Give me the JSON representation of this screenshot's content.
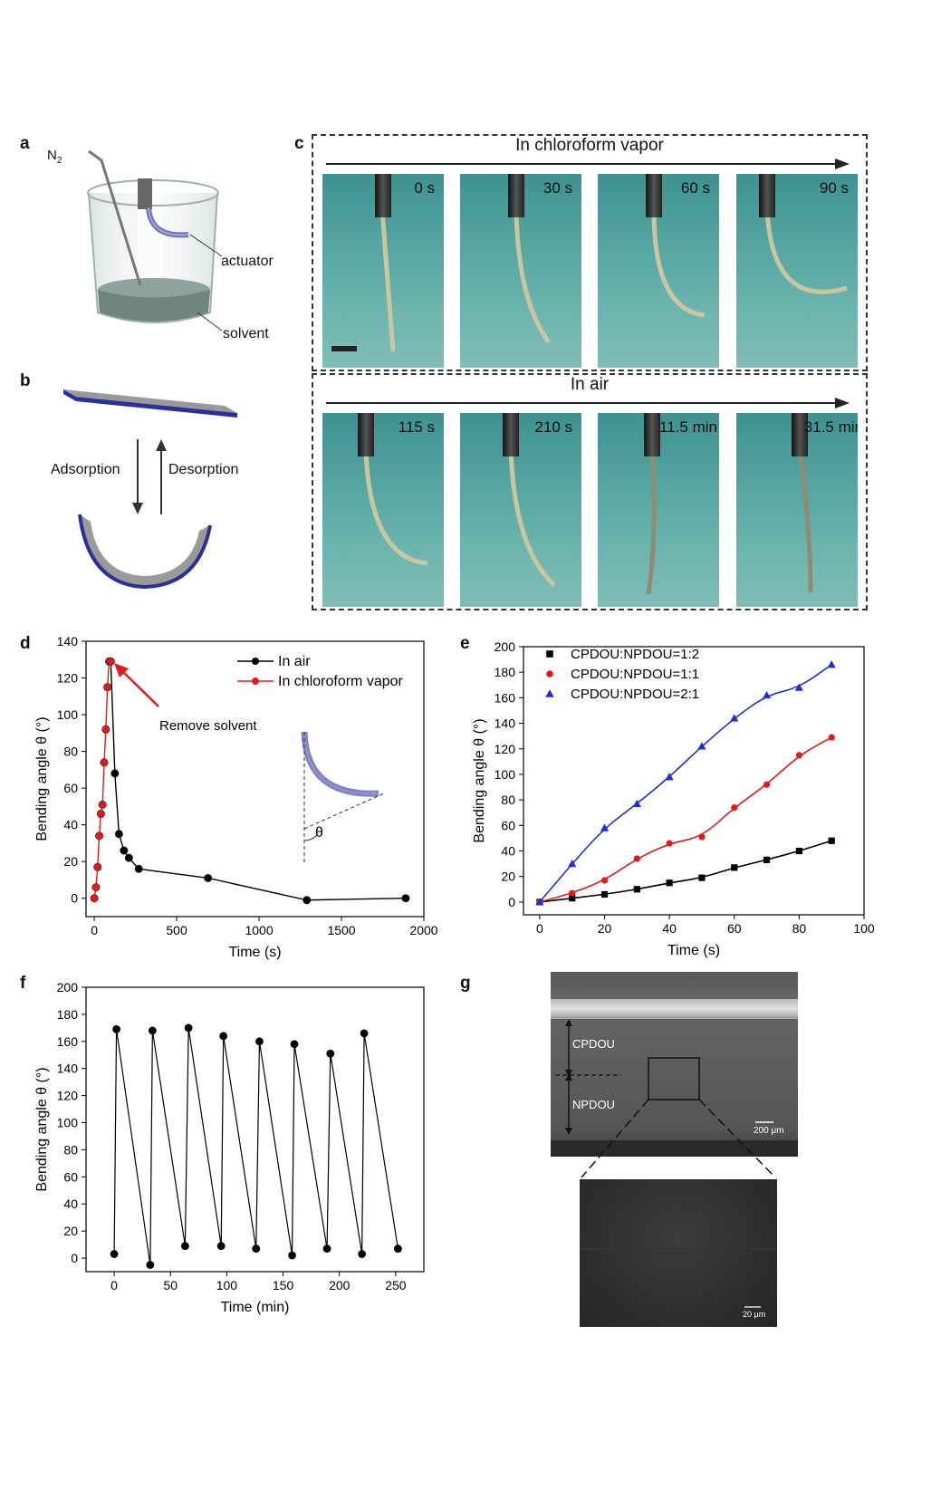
{
  "panel_labels": {
    "a": "a",
    "b": "b",
    "c": "c",
    "d": "d",
    "e": "e",
    "f": "f",
    "g": "g"
  },
  "panel_a": {
    "n2": "N",
    "n2_sub": "2",
    "actuator": "actuator",
    "solvent": "solvent"
  },
  "panel_b": {
    "adsorption": "Adsorption",
    "desorption": "Desorption"
  },
  "panel_c": {
    "row1_title": "In chloroform vapor",
    "row2_title": "In air",
    "row1_times": [
      "0 s",
      "30 s",
      "60 s",
      "90 s"
    ],
    "row2_times": [
      "115 s",
      "210 s",
      "11.5 min",
      "31.5 min"
    ]
  },
  "panel_g": {
    "cpdou": "CPDOU",
    "npdou": "NPDOU",
    "scale1": "200 μm",
    "scale2": "20 μm"
  },
  "chart_data": [
    {
      "id": "d",
      "type": "line",
      "xlabel": "Time (s)",
      "ylabel": "Bending angle θ (°)",
      "xlim": [
        -50,
        2000
      ],
      "ylim": [
        -10,
        140
      ],
      "xticks": [
        0,
        500,
        1000,
        1500,
        2000
      ],
      "yticks": [
        0,
        20,
        40,
        60,
        80,
        100,
        120,
        140
      ],
      "legend_position": "top-right",
      "annotation": "Remove solvent",
      "inset_label": "θ",
      "series": [
        {
          "name": "In air",
          "color": "#000000",
          "x": [
            100,
            125,
            150,
            180,
            210,
            270,
            690,
            1290,
            1890
          ],
          "y": [
            129,
            68,
            35,
            26,
            22,
            16,
            11,
            -1,
            0
          ]
        },
        {
          "name": "In chloroform vapor",
          "color": "#e31a1c",
          "x": [
            0,
            10,
            20,
            30,
            40,
            50,
            60,
            70,
            80,
            90,
            100
          ],
          "y": [
            0,
            6,
            17,
            34,
            46,
            51,
            74,
            92,
            115,
            129,
            129
          ]
        }
      ]
    },
    {
      "id": "e",
      "type": "scatter",
      "xlabel": "Time (s)",
      "ylabel": "Bending angle θ (°)",
      "xlim": [
        -5,
        100
      ],
      "ylim": [
        -10,
        200
      ],
      "xticks": [
        0,
        20,
        40,
        60,
        80,
        100
      ],
      "yticks": [
        0,
        20,
        40,
        60,
        80,
        100,
        120,
        140,
        160,
        180,
        200
      ],
      "legend_position": "top-left",
      "series": [
        {
          "name": "CPDOU:NPDOU=1:2",
          "color": "#000000",
          "marker": "square",
          "x": [
            0,
            10,
            20,
            30,
            40,
            50,
            60,
            70,
            80,
            90
          ],
          "y": [
            0,
            3,
            6,
            10,
            15,
            19,
            27,
            33,
            40,
            48
          ]
        },
        {
          "name": "CPDOU:NPDOU=1:1",
          "color": "#e31a1c",
          "marker": "circle",
          "x": [
            0,
            10,
            20,
            30,
            40,
            50,
            60,
            70,
            80,
            90
          ],
          "y": [
            0,
            7,
            17,
            34,
            46,
            51,
            74,
            92,
            115,
            129
          ]
        },
        {
          "name": "CPDOU:NPDOU=2:1",
          "color": "#1f2fd1",
          "marker": "triangle",
          "x": [
            0,
            10,
            20,
            30,
            40,
            50,
            60,
            70,
            80,
            90
          ],
          "y": [
            0,
            30,
            58,
            77,
            98,
            122,
            144,
            162,
            168,
            186
          ]
        }
      ]
    },
    {
      "id": "f",
      "type": "line",
      "xlabel": "Time (min)",
      "ylabel": "Bending angle θ (°)",
      "xlim": [
        -25,
        275
      ],
      "ylim": [
        -10,
        200
      ],
      "xticks": [
        0,
        50,
        100,
        150,
        200,
        250
      ],
      "yticks": [
        0,
        20,
        40,
        60,
        80,
        100,
        120,
        140,
        160,
        180,
        200
      ],
      "series": [
        {
          "name": "",
          "color": "#000000",
          "x": [
            0,
            2,
            32,
            34,
            63,
            66,
            95,
            97,
            126,
            129,
            158,
            160,
            189,
            192,
            220,
            222,
            252
          ],
          "y": [
            3,
            169,
            -5,
            168,
            9,
            170,
            9,
            164,
            7,
            160,
            2,
            158,
            7,
            151,
            3,
            166,
            7
          ]
        }
      ]
    }
  ]
}
